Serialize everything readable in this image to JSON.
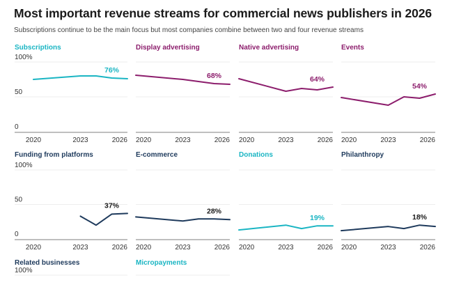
{
  "header": {
    "title": "Most important revenue streams for commercial news publishers in 2026",
    "subtitle": "Subscriptions continue to be the main focus but most companies combine between two and four revenue streams"
  },
  "colors": {
    "teal": "#1ab5c3",
    "purple": "#8c1d6c",
    "navy": "#1e3a5c",
    "label_dark": "#1a1a1a",
    "grid": "#eeeeee",
    "axis": "#aaaaaa"
  },
  "chart_data": {
    "type": "line",
    "layout": "small-multiples",
    "title": "Most important revenue streams for commercial news publishers in 2026",
    "subtitle": "Subscriptions continue to be the main focus but most companies combine between two and four revenue streams",
    "x": [
      2020,
      2023,
      2024,
      2025,
      2026
    ],
    "xticks": [
      "2020",
      "2023",
      "2026"
    ],
    "yticks": [
      "0",
      "50",
      "100%"
    ],
    "ylim": [
      0,
      100
    ],
    "xlim": [
      2020,
      2026
    ],
    "grid": true,
    "panels": [
      {
        "name": "Subscriptions",
        "color": "teal",
        "label_color": "teal",
        "values": [
          75,
          80,
          80,
          77,
          76
        ],
        "end_label": "76%",
        "show_yticks": true
      },
      {
        "name": "Display advertising",
        "color": "purple",
        "label_color": "purple",
        "values": [
          81,
          75,
          72,
          69,
          68
        ],
        "end_label": "68%",
        "show_yticks": false
      },
      {
        "name": "Native advertising",
        "color": "purple",
        "label_color": "purple",
        "values": [
          76,
          58,
          62,
          60,
          64
        ],
        "end_label": "64%",
        "show_yticks": false
      },
      {
        "name": "Events",
        "color": "purple",
        "label_color": "purple",
        "values": [
          49,
          38,
          50,
          48,
          54
        ],
        "end_label": "54%",
        "show_yticks": false
      },
      {
        "name": "Funding from platforms",
        "color": "navy",
        "label_color": "label_dark",
        "values": [
          null,
          33,
          20,
          36,
          37
        ],
        "end_label": "37%",
        "show_yticks": true
      },
      {
        "name": "E-commerce",
        "color": "navy",
        "label_color": "label_dark",
        "values": [
          32,
          26,
          29,
          29,
          28
        ],
        "end_label": "28%",
        "show_yticks": false
      },
      {
        "name": "Donations",
        "color": "teal",
        "label_color": "teal",
        "values": [
          13,
          20,
          15,
          19,
          19
        ],
        "end_label": "19%",
        "show_yticks": false
      },
      {
        "name": "Philanthropy",
        "color": "navy",
        "label_color": "label_dark",
        "values": [
          12,
          18,
          15,
          20,
          18
        ],
        "end_label": "18%",
        "show_yticks": false
      },
      {
        "name": "Related businesses",
        "color": "navy",
        "label_color": "label_dark",
        "values": [],
        "end_label": "",
        "show_yticks": true,
        "partial": true
      },
      {
        "name": "Micropayments",
        "color": "teal",
        "label_color": "teal",
        "values": [],
        "end_label": "",
        "show_yticks": false,
        "partial": true
      }
    ]
  }
}
